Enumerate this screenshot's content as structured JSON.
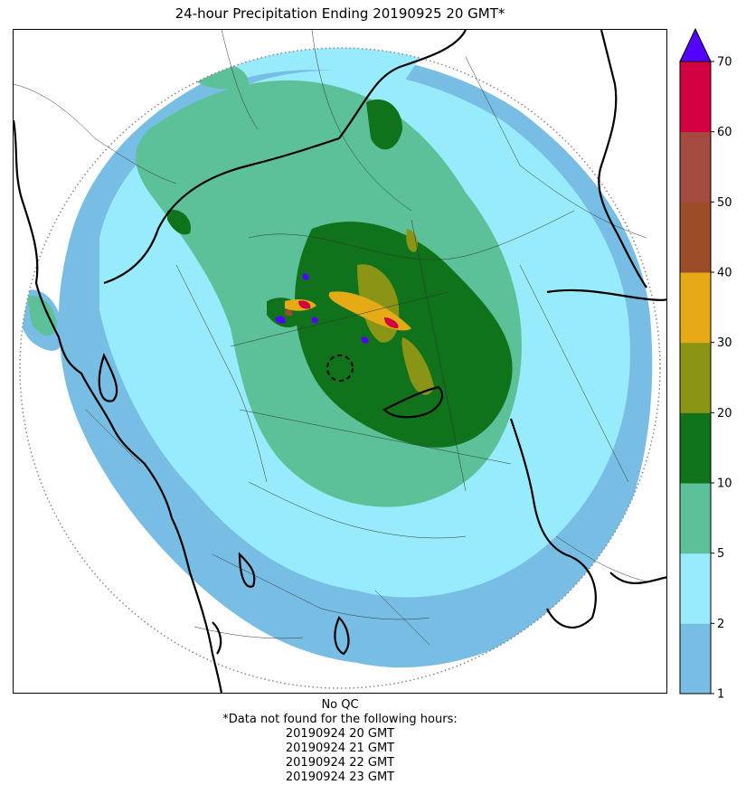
{
  "title": "24-hour Precipitation Ending 20190925 20 GMT*",
  "colorbar": {
    "levels": [
      {
        "label": "1",
        "color": "#78bde4"
      },
      {
        "label": "2",
        "color": "#98ebfb"
      },
      {
        "label": "5",
        "color": "#5cc198"
      },
      {
        "label": "10",
        "color": "#10721a"
      },
      {
        "label": "20",
        "color": "#8a9516"
      },
      {
        "label": "30",
        "color": "#e6aa16"
      },
      {
        "label": "40",
        "color": "#9c4c26"
      },
      {
        "label": "50",
        "color": "#a54a40"
      },
      {
        "label": "60",
        "color": "#d20040"
      },
      {
        "label": "70",
        "color": "#5300ff"
      }
    ],
    "extend_max": true
  },
  "map": {
    "range_ring": "dotted",
    "borders": "state and district boundaries"
  },
  "caption": {
    "qc": "No QC",
    "note": "*Data not found for the following hours:",
    "missing_hours": [
      "20190924 20 GMT",
      "20190924 21 GMT",
      "20190924 22 GMT",
      "20190924 23 GMT"
    ]
  }
}
